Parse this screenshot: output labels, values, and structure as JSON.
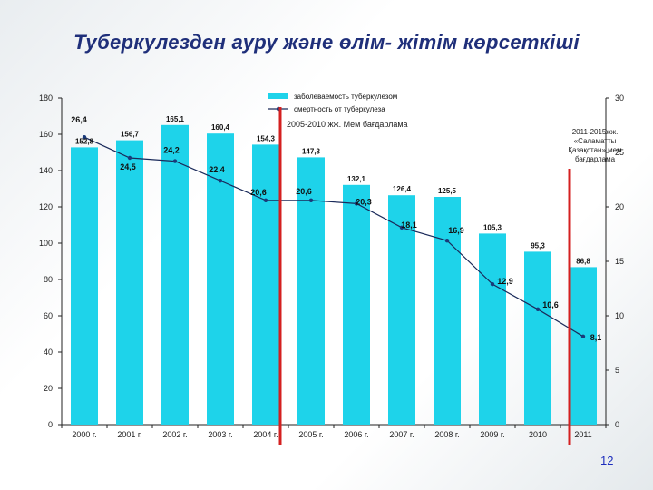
{
  "slide": {
    "title": "Туберкулезден ауру және өлім- жітім көрсеткіші",
    "page_number": "12"
  },
  "colors": {
    "bar": "#1ed3ea",
    "line": "#1a2a5a",
    "marker": "#1a3a7a",
    "divider": "#d42020",
    "title": "#1f2f7a",
    "page_number": "#1e2ebd"
  },
  "chart_data": {
    "type": "bar+line",
    "categories": [
      "2000 г.",
      "2001 г.",
      "2002 г.",
      "2003 г.",
      "2004 г.",
      "2005 г.",
      "2006 г.",
      "2007 г.",
      "2008 г.",
      "2009 г.",
      "2010",
      "2011"
    ],
    "series": [
      {
        "name": "заболеваемость туберкулезом",
        "type": "bar",
        "axis": "left",
        "values": [
          152.8,
          156.7,
          165.1,
          160.4,
          154.3,
          147.3,
          132.1,
          126.4,
          125.5,
          105.3,
          95.3,
          86.8
        ],
        "labels": [
          "152,8",
          "156,7",
          "165,1",
          "160,4",
          "154,3",
          "147,3",
          "132,1",
          "126,4",
          "125,5",
          "105,3",
          "95,3",
          "86,8"
        ]
      },
      {
        "name": "смертность от туберкулеза",
        "type": "line",
        "axis": "right",
        "values": [
          26.4,
          24.5,
          24.2,
          22.4,
          20.6,
          20.6,
          20.3,
          18.1,
          16.9,
          12.9,
          10.6,
          8.1
        ],
        "labels": [
          "26,4",
          "24,5",
          "24,2",
          "22,4",
          "20,6",
          "20,6",
          "20,3",
          "18,1",
          "16,9",
          "12,9",
          "10,6",
          "8,1"
        ]
      }
    ],
    "y_left": {
      "ylim": [
        0,
        180
      ],
      "ticks": [
        "0",
        "20",
        "40",
        "60",
        "80",
        "100",
        "120",
        "140",
        "160",
        "180"
      ]
    },
    "y_right": {
      "ylim": [
        0,
        30
      ],
      "ticks": [
        "0",
        "5",
        "10",
        "15",
        "20",
        "25",
        "30"
      ]
    },
    "legend_position": "top-center",
    "grid": false,
    "annotations": [
      {
        "text": "2005-2010 жж. Мем бағдарлама",
        "lines": [
          "2005-2010 жж. Мем бағдарлама"
        ]
      },
      {
        "text": "2011-2015жж. «Саламатты Қазақстан» мем бағдарлама",
        "lines": [
          "2011-2015жж.",
          "«Саламатты",
          "Қазақстан» мем",
          "бағдарлама"
        ]
      }
    ]
  }
}
